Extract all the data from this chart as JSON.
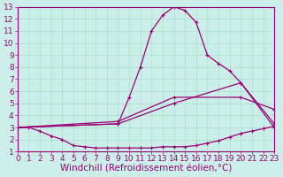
{
  "background_color": "#cceee8",
  "line_color": "#990077",
  "grid_color": "#aaddcc",
  "xlabel": "Windchill (Refroidissement éolien,°C)",
  "xlabel_fontsize": 7.5,
  "tick_fontsize": 6.5,
  "xlim": [
    0,
    23
  ],
  "ylim": [
    1,
    13
  ],
  "xticks": [
    0,
    1,
    2,
    3,
    4,
    5,
    6,
    7,
    8,
    9,
    10,
    11,
    12,
    13,
    14,
    15,
    16,
    17,
    18,
    19,
    20,
    21,
    22,
    23
  ],
  "yticks": [
    1,
    2,
    3,
    4,
    5,
    6,
    7,
    8,
    9,
    10,
    11,
    12,
    13
  ],
  "line1_x": [
    0,
    1,
    2,
    3,
    4,
    5,
    6,
    7,
    8,
    9,
    10,
    11,
    12,
    13,
    14,
    15,
    16,
    17,
    18,
    19,
    20,
    21,
    22,
    23
  ],
  "line1_y": [
    3.0,
    3.0,
    2.7,
    2.3,
    2.0,
    1.5,
    1.4,
    1.3,
    1.3,
    1.3,
    1.3,
    1.3,
    1.3,
    1.4,
    1.4,
    1.4,
    1.5,
    1.7,
    1.9,
    2.2,
    2.5,
    2.7,
    2.9,
    3.1
  ],
  "line2_x": [
    0,
    9,
    14,
    20,
    23
  ],
  "line2_y": [
    3.0,
    3.3,
    5.0,
    6.7,
    3.3
  ],
  "line3_x": [
    0,
    9,
    14,
    20,
    23
  ],
  "line3_y": [
    3.0,
    3.5,
    5.5,
    5.5,
    4.5
  ],
  "line4_x": [
    0,
    9,
    10,
    11,
    12,
    13,
    14,
    15,
    16,
    17,
    18,
    19,
    20,
    23
  ],
  "line4_y": [
    3.0,
    3.3,
    5.5,
    8.0,
    11.0,
    12.3,
    13.0,
    12.7,
    11.7,
    9.0,
    8.3,
    7.7,
    6.7,
    3.0
  ],
  "marker": "+",
  "markersize": 3.5,
  "linewidth": 0.9
}
